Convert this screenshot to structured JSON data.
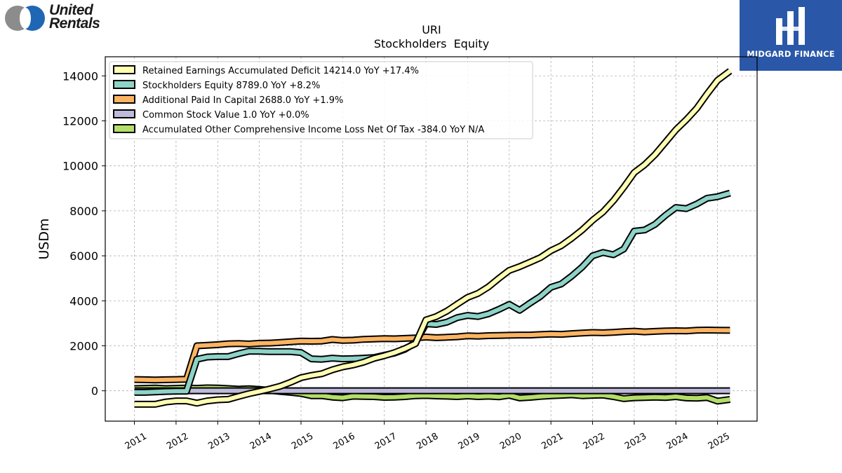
{
  "branding": {
    "left_logo_line1": "United",
    "left_logo_line2": "Rentals",
    "right_logo_text": "MIDGARD FINANCE"
  },
  "chart_data": {
    "type": "line",
    "title": "URI",
    "subtitle": "Stockholders  Equity",
    "xlabel": "",
    "ylabel": "USDm",
    "xlim": [
      2010.3,
      2025.95
    ],
    "ylim": [
      -1350,
      14850
    ],
    "x_ticks": [
      2011,
      2012,
      2013,
      2014,
      2015,
      2016,
      2017,
      2018,
      2019,
      2020,
      2021,
      2022,
      2023,
      2024,
      2025
    ],
    "y_ticks": [
      0,
      2000,
      4000,
      6000,
      8000,
      10000,
      12000,
      14000
    ],
    "grid": true,
    "legend_position": "top-left",
    "series": [
      {
        "name": "Retained Earnings Accumulated Deficit",
        "legend_label": "Retained Earnings Accumulated Deficit  14214.0 YoY +17.4%",
        "color": "#ffffb3",
        "x": [
          2011,
          2011.25,
          2011.5,
          2011.75,
          2012,
          2012.25,
          2012.5,
          2012.75,
          2013,
          2013.25,
          2013.5,
          2013.75,
          2014,
          2014.25,
          2014.5,
          2014.75,
          2015,
          2015.25,
          2015.5,
          2015.75,
          2016,
          2016.25,
          2016.5,
          2016.75,
          2017,
          2017.25,
          2017.5,
          2017.75,
          2018,
          2018.25,
          2018.5,
          2018.75,
          2019,
          2019.25,
          2019.5,
          2019.75,
          2020,
          2020.25,
          2020.5,
          2020.75,
          2021,
          2021.25,
          2021.5,
          2021.75,
          2022,
          2022.25,
          2022.5,
          2022.75,
          2023,
          2023.25,
          2023.5,
          2023.75,
          2024,
          2024.25,
          2024.5,
          2024.75,
          2025,
          2025.3
        ],
        "y": [
          -600,
          -600,
          -600,
          -500,
          -450,
          -450,
          -550,
          -450,
          -400,
          -380,
          -250,
          -130,
          -30,
          80,
          200,
          380,
          580,
          680,
          760,
          930,
          1060,
          1150,
          1270,
          1440,
          1560,
          1700,
          1880,
          2100,
          3150,
          3300,
          3540,
          3850,
          4150,
          4330,
          4620,
          5000,
          5350,
          5520,
          5720,
          5920,
          6230,
          6450,
          6780,
          7150,
          7580,
          7950,
          8450,
          9050,
          9700,
          10050,
          10500,
          11050,
          11600,
          12050,
          12550,
          13200,
          13800,
          14214
        ]
      },
      {
        "name": "Stockholders Equity",
        "legend_label": "Stockholders Equity  8789.0 YoY +8.2%",
        "color": "#8dd3c7",
        "x": [
          2011,
          2011.25,
          2011.5,
          2011.75,
          2012,
          2012.25,
          2012.5,
          2012.75,
          2013,
          2013.25,
          2013.5,
          2013.75,
          2014,
          2014.25,
          2014.5,
          2014.75,
          2015,
          2015.25,
          2015.5,
          2015.75,
          2016,
          2016.25,
          2016.5,
          2016.75,
          2017,
          2017.25,
          2017.5,
          2017.75,
          2018,
          2018.25,
          2018.5,
          2018.75,
          2019,
          2019.25,
          2019.5,
          2019.75,
          2020,
          2020.25,
          2020.5,
          2020.75,
          2021,
          2021.25,
          2021.5,
          2021.75,
          2022,
          2022.25,
          2022.5,
          2022.75,
          2023,
          2023.25,
          2023.5,
          2023.75,
          2024,
          2024.25,
          2024.5,
          2024.75,
          2025,
          2025.3
        ],
        "y": [
          -70,
          -70,
          -50,
          -30,
          -20,
          -20,
          1400,
          1500,
          1520,
          1520,
          1650,
          1760,
          1760,
          1740,
          1740,
          1740,
          1700,
          1420,
          1400,
          1450,
          1420,
          1430,
          1450,
          1480,
          1580,
          1680,
          1850,
          2150,
          2980,
          2950,
          3050,
          3250,
          3350,
          3300,
          3420,
          3620,
          3840,
          3580,
          3900,
          4200,
          4600,
          4750,
          5100,
          5500,
          6000,
          6150,
          6050,
          6300,
          7100,
          7150,
          7400,
          7800,
          8150,
          8100,
          8300,
          8560,
          8630,
          8789
        ]
      },
      {
        "name": "Additional Paid In Capital",
        "legend_label": "Additional Paid In Capital  2688.0 YoY +1.9%",
        "color": "#fdb462",
        "x": [
          2011,
          2011.25,
          2011.5,
          2011.75,
          2012,
          2012.25,
          2012.5,
          2012.75,
          2013,
          2013.25,
          2013.5,
          2013.75,
          2014,
          2014.25,
          2014.5,
          2014.75,
          2015,
          2015.25,
          2015.5,
          2015.75,
          2016,
          2016.25,
          2016.5,
          2016.75,
          2017,
          2017.25,
          2017.5,
          2017.75,
          2018,
          2018.25,
          2018.5,
          2018.75,
          2019,
          2019.25,
          2019.5,
          2019.75,
          2020,
          2020.25,
          2020.5,
          2020.75,
          2021,
          2021.25,
          2021.5,
          2021.75,
          2022,
          2022.25,
          2022.5,
          2022.75,
          2023,
          2023.25,
          2023.5,
          2023.75,
          2024,
          2024.25,
          2024.5,
          2024.75,
          2025,
          2025.3
        ],
        "y": [
          500,
          490,
          480,
          490,
          500,
          510,
          2000,
          2020,
          2050,
          2090,
          2100,
          2080,
          2110,
          2120,
          2150,
          2180,
          2210,
          2200,
          2210,
          2280,
          2240,
          2250,
          2290,
          2300,
          2320,
          2310,
          2330,
          2350,
          2390,
          2360,
          2380,
          2400,
          2440,
          2430,
          2450,
          2460,
          2470,
          2480,
          2480,
          2500,
          2520,
          2510,
          2540,
          2570,
          2590,
          2580,
          2600,
          2630,
          2650,
          2620,
          2640,
          2660,
          2670,
          2660,
          2690,
          2700,
          2690,
          2688
        ]
      },
      {
        "name": "Common Stock Value",
        "legend_label": "Common Stock Value  1.0 YoY +0.0%",
        "color": "#bebada",
        "x": [
          2011,
          2011.5,
          2012,
          2012.5,
          2013,
          2013.5,
          2014,
          2014.5,
          2015,
          2015.5,
          2016,
          2016.5,
          2017,
          2017.5,
          2018,
          2018.5,
          2019,
          2019.5,
          2020,
          2020.5,
          2021,
          2021.5,
          2022,
          2022.5,
          2023,
          2023.5,
          2024,
          2024.5,
          2025,
          2025.3
        ],
        "y": [
          1,
          1,
          1,
          1,
          1,
          1,
          1,
          1,
          1,
          1,
          1,
          1,
          1,
          1,
          1,
          1,
          1,
          1,
          1,
          1,
          1,
          1,
          1,
          1,
          1,
          1,
          1,
          1,
          1,
          1
        ]
      },
      {
        "name": "Accumulated Other Comprehensive Income Loss Net Of Tax",
        "legend_label": "Accumulated Other Comprehensive Income Loss Net Of Tax  -384.0 YoY N/A",
        "color": "#b3de69",
        "x": [
          2011,
          2011.25,
          2011.5,
          2011.75,
          2012,
          2012.25,
          2012.5,
          2012.75,
          2013,
          2013.25,
          2013.5,
          2013.75,
          2014,
          2014.25,
          2014.5,
          2014.75,
          2015,
          2015.25,
          2015.5,
          2015.75,
          2016,
          2016.25,
          2016.5,
          2016.75,
          2017,
          2017.25,
          2017.5,
          2017.75,
          2018,
          2018.25,
          2018.5,
          2018.75,
          2019,
          2019.25,
          2019.5,
          2019.75,
          2020,
          2020.25,
          2020.5,
          2020.75,
          2021,
          2021.25,
          2021.5,
          2021.75,
          2022,
          2022.25,
          2022.5,
          2022.75,
          2023,
          2023.25,
          2023.5,
          2023.75,
          2024,
          2024.25,
          2024.5,
          2024.75,
          2025,
          2025.3
        ],
        "y": [
          100,
          110,
          120,
          100,
          110,
          120,
          110,
          130,
          120,
          100,
          70,
          90,
          60,
          20,
          -30,
          -70,
          -120,
          -220,
          -220,
          -280,
          -310,
          -240,
          -250,
          -260,
          -290,
          -280,
          -260,
          -220,
          -210,
          -230,
          -240,
          -260,
          -230,
          -260,
          -240,
          -270,
          -200,
          -320,
          -290,
          -250,
          -220,
          -200,
          -180,
          -220,
          -200,
          -190,
          -260,
          -350,
          -310,
          -300,
          -280,
          -300,
          -260,
          -320,
          -330,
          -300,
          -460,
          -384
        ]
      }
    ]
  }
}
